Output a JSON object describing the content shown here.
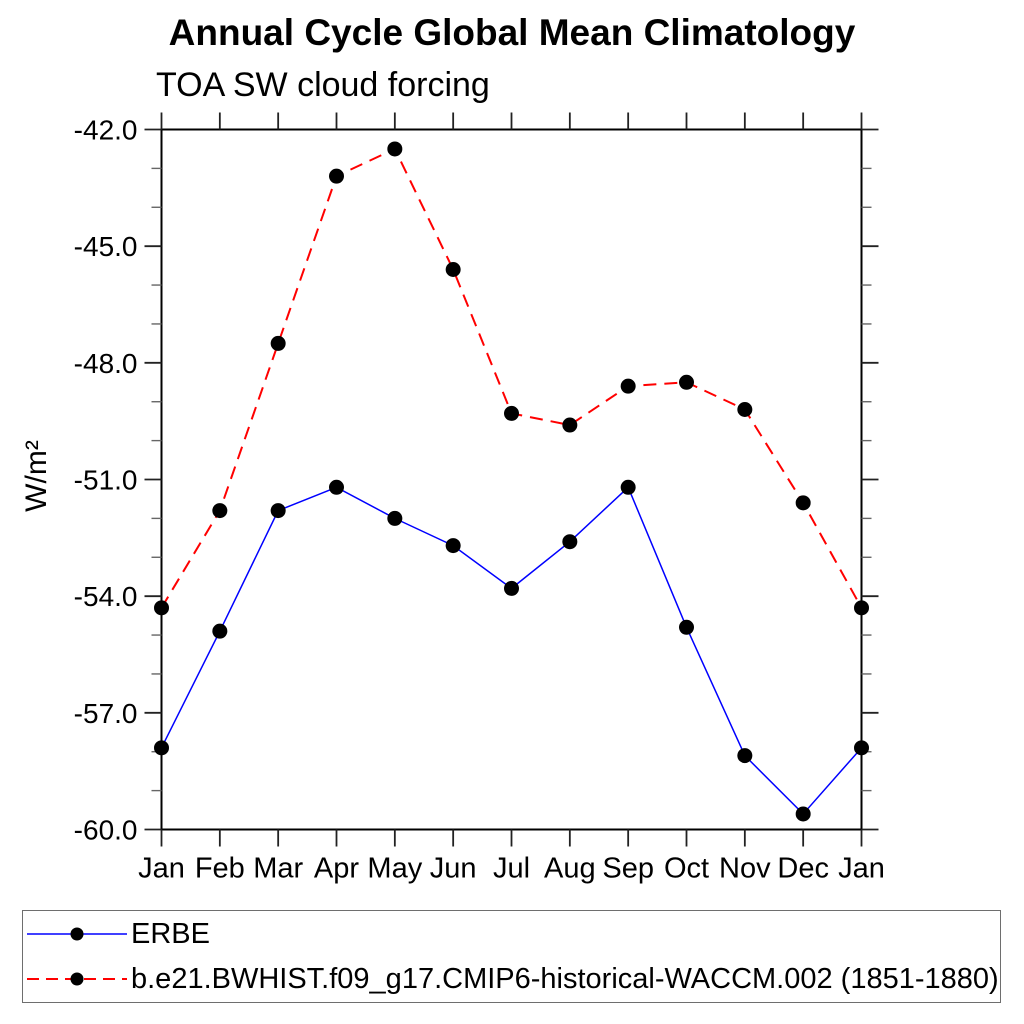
{
  "header": {
    "title": "Annual Cycle Global Mean Climatology",
    "subtitle": "TOA SW cloud forcing"
  },
  "chart_data": {
    "type": "line",
    "title": "Annual Cycle Global Mean Climatology",
    "subtitle": "TOA SW cloud forcing",
    "ylabel": "W/m²",
    "xlabel": "",
    "categories": [
      "Jan",
      "Feb",
      "Mar",
      "Apr",
      "May",
      "Jun",
      "Jul",
      "Aug",
      "Sep",
      "Oct",
      "Nov",
      "Dec",
      "Jan"
    ],
    "series": [
      {
        "name": "ERBE",
        "color": "#0000ff",
        "style": "solid",
        "marker": "circle",
        "marker_color": "#000000",
        "values": [
          -57.9,
          -54.9,
          -51.8,
          -51.2,
          -52.0,
          -52.7,
          -53.8,
          -52.6,
          -51.2,
          -54.8,
          -58.1,
          -59.6,
          -57.9
        ]
      },
      {
        "name": "b.e21.BWHIST.f09_g17.CMIP6-historical-WACCM.002 (1851-1880)",
        "color": "#ff0000",
        "style": "dashed",
        "marker": "circle",
        "marker_color": "#000000",
        "values": [
          -54.3,
          -51.8,
          -47.5,
          -43.2,
          -42.5,
          -45.6,
          -49.3,
          -49.6,
          -48.6,
          -48.5,
          -49.2,
          -51.6,
          -54.3
        ]
      }
    ],
    "ylim": [
      -60,
      -42
    ],
    "yticks_major": [
      -42,
      -45,
      -48,
      -51,
      -54,
      -57,
      -60
    ],
    "ytick_labels": [
      "-42.0",
      "-45.0",
      "-48.0",
      "-51.0",
      "-54.0",
      "-57.0",
      "-60.0"
    ],
    "ytick_minor_step": 1,
    "grid": false,
    "legend_position": "bottom-left-box"
  },
  "legend": {
    "entries": [
      {
        "label": "ERBE"
      },
      {
        "label": "b.e21.BWHIST.f09_g17.CMIP6-historical-WACCM.002 (1851-1880)"
      }
    ]
  }
}
